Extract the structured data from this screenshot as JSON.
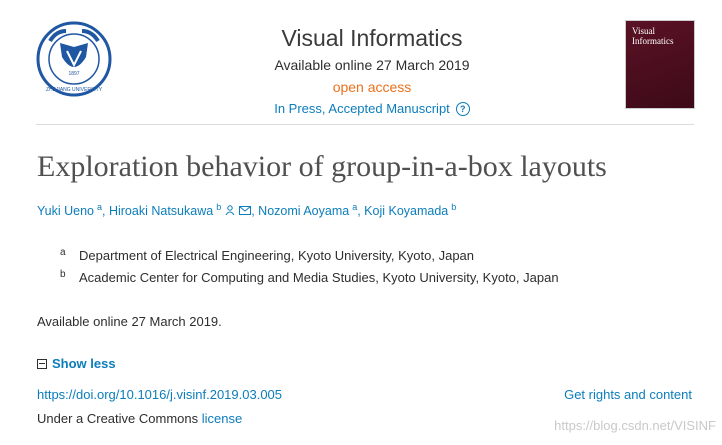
{
  "header": {
    "journal_title": "Visual Informatics",
    "available_online": "Available online 27 March 2019",
    "open_access": "open access",
    "status": "In Press, Accepted Manuscript",
    "help_symbol": "?",
    "cover": {
      "title_line1": "Visual",
      "title_line2": "Informatics"
    },
    "logo": {
      "year": "1897",
      "text": "ZHEJIANG UNIVERSITY"
    }
  },
  "article": {
    "title": "Exploration behavior of group-in-a-box layouts",
    "authors": [
      {
        "name": "Yuki Ueno",
        "aff": "a",
        "sep": ","
      },
      {
        "name": "Hiroaki Natsukawa",
        "aff": "b",
        "sep": ","
      },
      {
        "name": "Nozomi Aoyama",
        "aff": "a",
        "sep": ","
      },
      {
        "name": "Koji Koyamada",
        "aff": "b",
        "sep": ""
      }
    ],
    "affiliations": [
      {
        "mark": "a",
        "text": "Department of Electrical Engineering, Kyoto University, Kyoto, Japan"
      },
      {
        "mark": "b",
        "text": "Academic Center for Computing and Media Studies, Kyoto University, Kyoto, Japan"
      }
    ],
    "available_online": "Available online 27 March 2019.",
    "show_less": "Show less",
    "doi": "https://doi.org/10.1016/j.visinf.2019.03.005",
    "rights": "Get rights and content",
    "license_prefix": "Under a Creative Commons ",
    "license_link": "license"
  },
  "watermark": "https://blog.csdn.net/VISINF",
  "colors": {
    "link": "#0c7dbb",
    "open_access": "#e9711c",
    "cover": "#4a0e1d"
  }
}
